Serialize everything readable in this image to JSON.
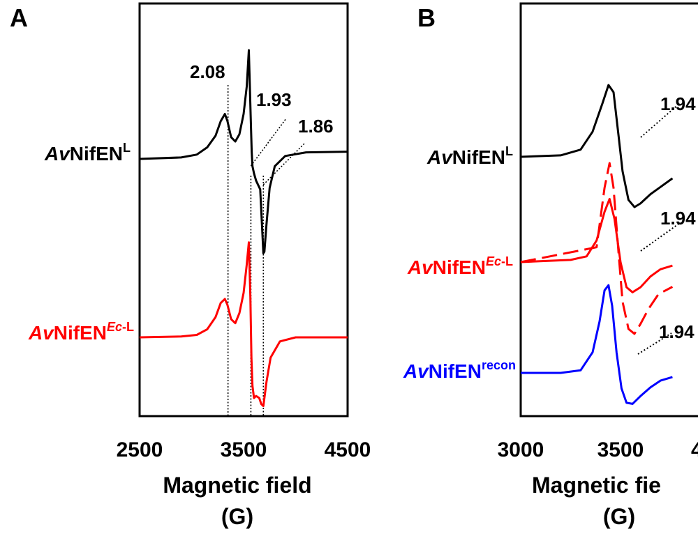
{
  "chart_data": [
    {
      "panel_letter": "A",
      "type": "line",
      "xlabel_line1": "Magnetic field",
      "xlabel_line2": "(G)",
      "xlim": [
        2500,
        4500
      ],
      "x_ticks": [
        "2500",
        "3500",
        "4500"
      ],
      "grid": false,
      "g_value_markers": [
        {
          "label": "2.08",
          "field": 3350
        },
        {
          "label": "1.93",
          "field": 3570
        },
        {
          "label": "1.86",
          "field": 3690
        }
      ],
      "series": [
        {
          "name_prefix": "Av",
          "name_base": "NifEN",
          "name_sup": "L",
          "name_sup_italic": "",
          "name_sup_rest": "",
          "color": "#000000",
          "dash": false,
          "baseline_left": 0.0,
          "baseline_right": 0.1,
          "points": [
            [
              2500,
              0.0
            ],
            [
              2900,
              0.02
            ],
            [
              3050,
              0.06
            ],
            [
              3150,
              0.16
            ],
            [
              3230,
              0.32
            ],
            [
              3280,
              0.52
            ],
            [
              3320,
              0.62
            ],
            [
              3345,
              0.52
            ],
            [
              3380,
              0.3
            ],
            [
              3420,
              0.24
            ],
            [
              3460,
              0.34
            ],
            [
              3500,
              0.62
            ],
            [
              3530,
              1.0
            ],
            [
              3550,
              1.5
            ],
            [
              3568,
              0.6
            ],
            [
              3578,
              0.1
            ],
            [
              3585,
              -0.1
            ],
            [
              3600,
              -0.2
            ],
            [
              3620,
              -0.3
            ],
            [
              3660,
              -0.42
            ],
            [
              3690,
              -1.3
            ],
            [
              3700,
              -1.28
            ],
            [
              3720,
              -0.9
            ],
            [
              3750,
              -0.4
            ],
            [
              3800,
              -0.1
            ],
            [
              3900,
              0.04
            ],
            [
              4100,
              0.09
            ],
            [
              4500,
              0.1
            ]
          ]
        },
        {
          "name_prefix": "Av",
          "name_base": "NifEN",
          "name_sup": "",
          "name_sup_italic": "Ec",
          "name_sup_rest": "-L",
          "color": "#ff0000",
          "dash": false,
          "baseline_left": 0.0,
          "baseline_right": 0.0,
          "points": [
            [
              2500,
              0.0
            ],
            [
              2900,
              0.02
            ],
            [
              3050,
              0.06
            ],
            [
              3150,
              0.2
            ],
            [
              3230,
              0.5
            ],
            [
              3280,
              0.85
            ],
            [
              3320,
              0.95
            ],
            [
              3345,
              0.8
            ],
            [
              3380,
              0.45
            ],
            [
              3420,
              0.35
            ],
            [
              3460,
              0.6
            ],
            [
              3500,
              1.1
            ],
            [
              3530,
              1.8
            ],
            [
              3550,
              2.35
            ],
            [
              3565,
              1.0
            ],
            [
              3575,
              -0.5
            ],
            [
              3585,
              -1.2
            ],
            [
              3600,
              -1.5
            ],
            [
              3620,
              -1.45
            ],
            [
              3650,
              -1.5
            ],
            [
              3670,
              -1.65
            ],
            [
              3690,
              -1.7
            ],
            [
              3700,
              -1.5
            ],
            [
              3720,
              -1.1
            ],
            [
              3760,
              -0.5
            ],
            [
              3850,
              -0.1
            ],
            [
              4000,
              0.0
            ],
            [
              4500,
              0.0
            ]
          ]
        }
      ]
    },
    {
      "panel_letter": "B",
      "type": "line",
      "xlabel_line1": "Magnetic fie",
      "xlabel_line2": "(G)",
      "xlim": [
        3000,
        4000
      ],
      "x_ticks": [
        "3000",
        "3500",
        "4"
      ],
      "grid": false,
      "g_value_markers": [
        {
          "label": "1.94"
        },
        {
          "label": "1.94"
        },
        {
          "label": "1.94"
        }
      ],
      "series": [
        {
          "name_prefix": "Av",
          "name_base": "NifEN",
          "name_sup": "L",
          "name_sup_italic": "",
          "name_sup_rest": "",
          "color": "#000000",
          "dash": false,
          "points": [
            [
              3000,
              0.0
            ],
            [
              3200,
              0.02
            ],
            [
              3300,
              0.1
            ],
            [
              3360,
              0.35
            ],
            [
              3410,
              0.75
            ],
            [
              3440,
              1.0
            ],
            [
              3465,
              0.9
            ],
            [
              3490,
              0.3
            ],
            [
              3510,
              -0.2
            ],
            [
              3540,
              -0.6
            ],
            [
              3570,
              -0.7
            ],
            [
              3600,
              -0.65
            ],
            [
              3650,
              -0.52
            ],
            [
              3700,
              -0.42
            ],
            [
              3760,
              -0.3
            ]
          ]
        },
        {
          "name_prefix": "Av",
          "name_base": "NifEN",
          "name_sup": "",
          "name_sup_italic": "Ec",
          "name_sup_rest": "-L",
          "color": "#ff0000",
          "dash": false,
          "points": [
            [
              3000,
              0.0
            ],
            [
              3250,
              0.03
            ],
            [
              3330,
              0.08
            ],
            [
              3380,
              0.3
            ],
            [
              3420,
              0.7
            ],
            [
              3445,
              0.88
            ],
            [
              3470,
              0.6
            ],
            [
              3500,
              0.0
            ],
            [
              3530,
              -0.35
            ],
            [
              3560,
              -0.42
            ],
            [
              3600,
              -0.35
            ],
            [
              3650,
              -0.2
            ],
            [
              3700,
              -0.1
            ],
            [
              3760,
              -0.05
            ]
          ]
        },
        {
          "name_prefix": "Av",
          "name_base": "NifEN",
          "name_sup": "",
          "name_sup_italic": "Ec",
          "name_sup_rest": "-L",
          "color": "#ff0000",
          "dash": true,
          "points": [
            [
              3000,
              0.0
            ],
            [
              3380,
              0.3
            ],
            [
              3420,
              1.5
            ],
            [
              3445,
              2.0
            ],
            [
              3465,
              1.5
            ],
            [
              3490,
              0.2
            ],
            [
              3510,
              -0.8
            ],
            [
              3540,
              -1.35
            ],
            [
              3570,
              -1.45
            ],
            [
              3600,
              -1.25
            ],
            [
              3640,
              -0.95
            ],
            [
              3690,
              -0.65
            ],
            [
              3760,
              -0.5
            ]
          ]
        },
        {
          "name_prefix": "Av",
          "name_base": "NifEN",
          "name_sup": "recon",
          "name_sup_italic": "",
          "name_sup_rest": "",
          "color": "#0000ff",
          "dash": false,
          "points": [
            [
              3000,
              0.0
            ],
            [
              3200,
              0.0
            ],
            [
              3300,
              0.05
            ],
            [
              3360,
              0.4
            ],
            [
              3395,
              1.0
            ],
            [
              3420,
              1.6
            ],
            [
              3440,
              1.7
            ],
            [
              3458,
              1.3
            ],
            [
              3480,
              0.4
            ],
            [
              3505,
              -0.3
            ],
            [
              3530,
              -0.58
            ],
            [
              3560,
              -0.6
            ],
            [
              3600,
              -0.45
            ],
            [
              3650,
              -0.28
            ],
            [
              3700,
              -0.15
            ],
            [
              3760,
              -0.08
            ]
          ]
        }
      ]
    }
  ]
}
